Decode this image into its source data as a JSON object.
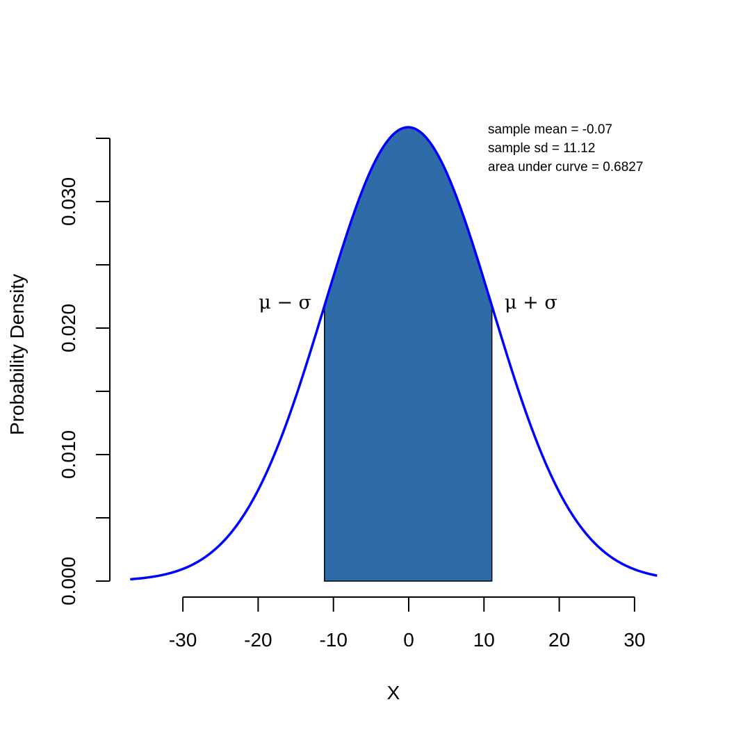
{
  "chart_data": {
    "type": "area",
    "title": "",
    "xlabel": "X",
    "ylabel": "Probability Density",
    "xlim": [
      -37,
      33
    ],
    "ylim": [
      0,
      0.036
    ],
    "x_ticks": [
      -30,
      -20,
      -10,
      0,
      10,
      20,
      30
    ],
    "x_tick_labels": [
      "-30",
      "-20",
      "-10",
      "0",
      "10",
      "20",
      "30"
    ],
    "y_ticks": [
      0,
      0.005,
      0.01,
      0.015,
      0.02,
      0.025,
      0.03,
      0.035
    ],
    "y_tick_labels": [
      "0.000",
      "",
      "0.010",
      "",
      "0.020",
      "",
      "0.030",
      ""
    ],
    "grid": false,
    "series": [
      {
        "mean": -0.07,
        "sd": 11.12,
        "x_range": [
          -37,
          33
        ],
        "color": "#0000ff"
      }
    ],
    "shaded_region": {
      "x_from": -11.19,
      "x_to": 11.05,
      "color": "#2e6ba8"
    },
    "sigma_labels": {
      "left": "μ − σ",
      "right": "μ + σ"
    },
    "annotations": [
      "sample mean = -0.07",
      "sample sd = 11.12",
      "area under curve = 0.6827"
    ]
  }
}
